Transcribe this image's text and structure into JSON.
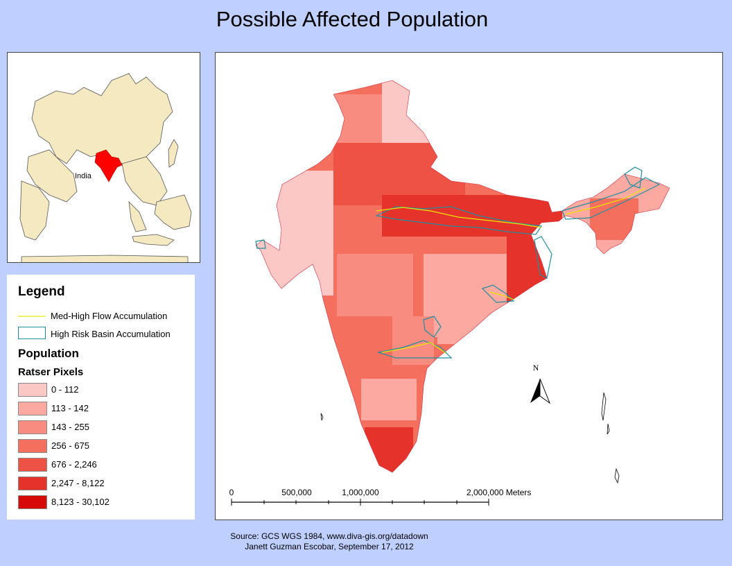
{
  "title": "Possible Affected Population",
  "overview_map": {
    "label": "India"
  },
  "legend": {
    "title": "Legend",
    "flow_label": "Med-High Flow Accumulation",
    "basin_label": "High Risk Basin Accumulation",
    "population_title": "Population",
    "subtitle": "Ratser Pixels",
    "classes": [
      {
        "label": "0 - 112",
        "color": "#fcc8c5"
      },
      {
        "label": "113 - 142",
        "color": "#fba9a1"
      },
      {
        "label": "143 - 255",
        "color": "#f98c80"
      },
      {
        "label": "256 - 675",
        "color": "#f56f5f"
      },
      {
        "label": "676 - 2,246",
        "color": "#ee5245"
      },
      {
        "label": "2,247 - 8,122",
        "color": "#e5332b"
      },
      {
        "label": "8,123 - 30,102",
        "color": "#d70a0a"
      }
    ],
    "flow_color": "#e8e800",
    "basin_color": "#1f8fa0"
  },
  "north_arrow": {
    "label": "N"
  },
  "scale_bar": {
    "labels": [
      "0",
      "500,000",
      "1,000,000",
      "2,000,000 Meters"
    ]
  },
  "source": {
    "line1": "Source: GCS WGS 1984, www.diva-gis.org/datadown",
    "line2": "Janett Guzman Escobar, September 17, 2012"
  },
  "colors": {
    "background": "#bfcfff",
    "highlight": "#ff0000",
    "land": "#f4e9c1"
  }
}
